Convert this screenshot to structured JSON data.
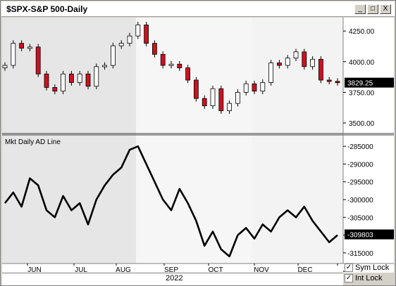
{
  "window": {
    "title": "$SPX-S&P 500-Daily",
    "buttons": {
      "minimize": "_",
      "maximize": "□",
      "close": "X"
    }
  },
  "price_panel": {
    "y_ticks": [
      "4250.00",
      "4000.00",
      "3750.00",
      "3500.00"
    ],
    "y_tick_values": [
      4250,
      4000,
      3750,
      3500
    ],
    "current_label": "3829.25",
    "current_value": 3829.25,
    "ylim": [
      3420,
      4360
    ]
  },
  "ad_panel": {
    "title": "Mkt Daily AD Line",
    "y_ticks": [
      "-285000",
      "-290000",
      "-295000",
      "-300000",
      "-305000",
      "-310000",
      "-315000"
    ],
    "y_tick_values": [
      -285000,
      -290000,
      -295000,
      -300000,
      -305000,
      -310000,
      -315000
    ],
    "current_label": "-309803",
    "current_value": -309803,
    "ylim": [
      -318000,
      -282000
    ]
  },
  "x_axis": {
    "months": [
      "JUN",
      "JUL",
      "AUG",
      "SEP",
      "OCT",
      "NOV",
      "DEC",
      "J"
    ],
    "year": "2022"
  },
  "locks": {
    "sym_lock": {
      "label": "Sym Lock",
      "checked": true
    },
    "int_lock": {
      "label": "Int Lock",
      "checked": true
    }
  },
  "colors": {
    "up_candle": "#ffffff",
    "down_candle": "#cc1122",
    "line": "#000000",
    "shade": "#e6e6e6"
  },
  "chart_data": [
    {
      "type": "candlestick",
      "title": "$SPX-S&P 500-Daily",
      "x": [
        "May-23",
        "May-27",
        "Jun-01",
        "Jun-06",
        "Jun-10",
        "Jun-15",
        "Jun-21",
        "Jun-27",
        "Jul-01",
        "Jul-07",
        "Jul-13",
        "Jul-19",
        "Jul-25",
        "Jul-29",
        "Aug-04",
        "Aug-10",
        "Aug-16",
        "Aug-22",
        "Aug-26",
        "Sep-01",
        "Sep-07",
        "Sep-13",
        "Sep-19",
        "Sep-23",
        "Sep-29",
        "Oct-05",
        "Oct-11",
        "Oct-17",
        "Oct-21",
        "Oct-27",
        "Nov-02",
        "Nov-08",
        "Nov-14",
        "Nov-18",
        "Nov-25",
        "Dec-01",
        "Dec-07",
        "Dec-13",
        "Dec-19",
        "Dec-23",
        "Dec-29"
      ],
      "close": [
        3970,
        4150,
        4110,
        4120,
        3900,
        3790,
        3760,
        3900,
        3830,
        3900,
        3800,
        3960,
        3970,
        4130,
        4150,
        4210,
        4300,
        4150,
        4060,
        3970,
        3980,
        3950,
        3850,
        3700,
        3640,
        3780,
        3600,
        3660,
        3750,
        3820,
        3760,
        3830,
        3990,
        3970,
        4030,
        4080,
        3960,
        4020,
        3850,
        3840,
        3830
      ],
      "ylim": [
        3420,
        4360
      ]
    },
    {
      "type": "line",
      "title": "Mkt Daily AD Line",
      "x": [
        "May-23",
        "May-27",
        "Jun-01",
        "Jun-06",
        "Jun-10",
        "Jun-15",
        "Jun-21",
        "Jun-27",
        "Jul-01",
        "Jul-07",
        "Jul-13",
        "Jul-19",
        "Jul-25",
        "Jul-29",
        "Aug-04",
        "Aug-10",
        "Aug-16",
        "Aug-22",
        "Aug-26",
        "Sep-01",
        "Sep-07",
        "Sep-13",
        "Sep-19",
        "Sep-23",
        "Sep-29",
        "Oct-05",
        "Oct-11",
        "Oct-17",
        "Oct-21",
        "Oct-27",
        "Nov-02",
        "Nov-08",
        "Nov-14",
        "Nov-18",
        "Nov-25",
        "Dec-01",
        "Dec-07",
        "Dec-13",
        "Dec-19",
        "Dec-23",
        "Dec-29"
      ],
      "values": [
        -301000,
        -298000,
        -302000,
        -294000,
        -296000,
        -303000,
        -305000,
        -299000,
        -303000,
        -301000,
        -307000,
        -300000,
        -296000,
        -293000,
        -291000,
        -286000,
        -285000,
        -290000,
        -295000,
        -300000,
        -303000,
        -297000,
        -301000,
        -306000,
        -313000,
        -309000,
        -314000,
        -316000,
        -310000,
        -308000,
        -311000,
        -307000,
        -309000,
        -305000,
        -303000,
        -305000,
        -302000,
        -306000,
        -309000,
        -312000,
        -310000
      ],
      "ylim": [
        -318000,
        -282000
      ]
    }
  ]
}
